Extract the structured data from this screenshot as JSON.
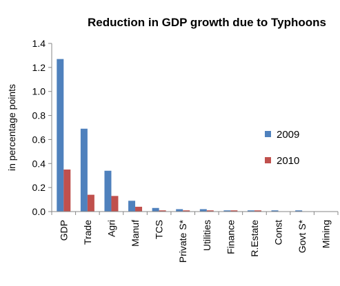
{
  "chart_data": {
    "type": "bar",
    "title": "Reduction in GDP growth due to Typhoons",
    "xlabel": "",
    "ylabel": "in percentage points",
    "ylim": [
      0,
      1.4
    ],
    "yticks": [
      "0.0",
      "0.2",
      "0.4",
      "0.6",
      "0.8",
      "1.0",
      "1.2",
      "1.4"
    ],
    "grid": false,
    "legend_position": "right",
    "categories": [
      "GDP",
      "Trade",
      "Agri",
      "Manuf",
      "TCS",
      "Private S*",
      "Utilities",
      "Finance",
      "R.Estate",
      "Const",
      "Govt S*",
      "Mining"
    ],
    "series": [
      {
        "name": "2009",
        "color": "#4f81bd",
        "values": [
          1.27,
          0.69,
          0.34,
          0.09,
          0.03,
          0.02,
          0.02,
          0.01,
          0.01,
          0.01,
          0.01,
          0.0
        ]
      },
      {
        "name": "2010",
        "color": "#c0504d",
        "values": [
          0.35,
          0.14,
          0.13,
          0.04,
          0.01,
          0.01,
          0.01,
          0.01,
          0.01,
          0.0,
          0.0,
          0.0
        ]
      }
    ]
  }
}
